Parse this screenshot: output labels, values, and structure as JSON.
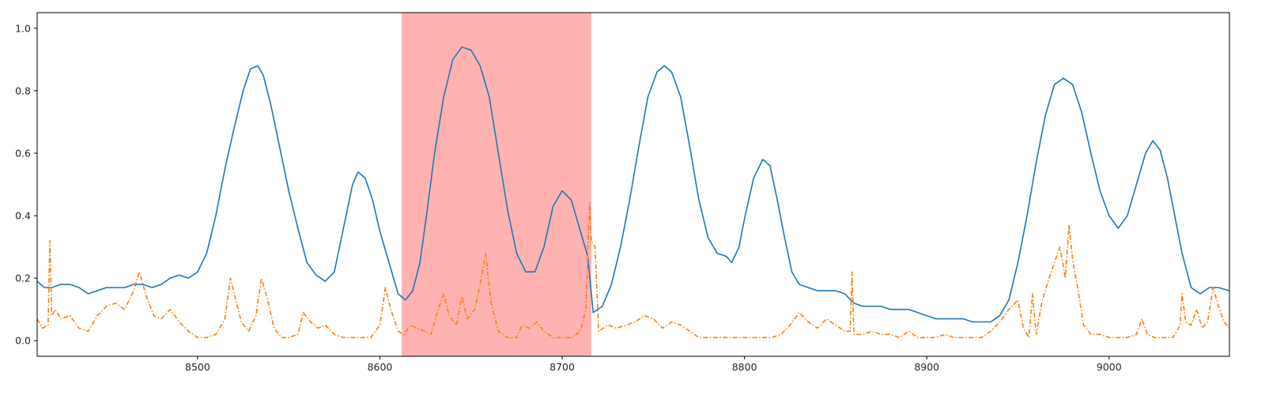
{
  "chart_data": {
    "type": "line",
    "title": "",
    "xlabel": "",
    "ylabel": "",
    "xlim": [
      8412,
      9066
    ],
    "ylim": [
      -0.05,
      1.05
    ],
    "grid": false,
    "legend": "none",
    "x_ticks": [
      8500,
      8600,
      8700,
      8800,
      8900,
      9000
    ],
    "y_ticks": [
      0.0,
      0.2,
      0.4,
      0.6,
      0.8,
      1.0
    ],
    "x_tick_labels": [
      "8500",
      "8600",
      "8700",
      "8800",
      "8900",
      "9000"
    ],
    "y_tick_labels": [
      "0.0",
      "0.2",
      "0.4",
      "0.6",
      "0.8",
      "1.0"
    ],
    "highlight_span": {
      "x0": 8612,
      "x1": 8716,
      "color": "#ff7f7f"
    },
    "series": [
      {
        "style": "solid",
        "color": "#1f77b4",
        "points": [
          [
            8412,
            0.19
          ],
          [
            8416,
            0.17
          ],
          [
            8420,
            0.17
          ],
          [
            8425,
            0.18
          ],
          [
            8430,
            0.18
          ],
          [
            8435,
            0.17
          ],
          [
            8440,
            0.15
          ],
          [
            8445,
            0.16
          ],
          [
            8450,
            0.17
          ],
          [
            8455,
            0.17
          ],
          [
            8460,
            0.17
          ],
          [
            8465,
            0.18
          ],
          [
            8470,
            0.18
          ],
          [
            8475,
            0.17
          ],
          [
            8480,
            0.18
          ],
          [
            8485,
            0.2
          ],
          [
            8490,
            0.21
          ],
          [
            8495,
            0.2
          ],
          [
            8500,
            0.22
          ],
          [
            8505,
            0.28
          ],
          [
            8510,
            0.4
          ],
          [
            8515,
            0.55
          ],
          [
            8520,
            0.68
          ],
          [
            8525,
            0.8
          ],
          [
            8529,
            0.87
          ],
          [
            8533,
            0.88
          ],
          [
            8536,
            0.85
          ],
          [
            8540,
            0.76
          ],
          [
            8545,
            0.62
          ],
          [
            8550,
            0.48
          ],
          [
            8555,
            0.36
          ],
          [
            8560,
            0.25
          ],
          [
            8565,
            0.21
          ],
          [
            8570,
            0.19
          ],
          [
            8575,
            0.22
          ],
          [
            8580,
            0.36
          ],
          [
            8585,
            0.5
          ],
          [
            8588,
            0.54
          ],
          [
            8592,
            0.52
          ],
          [
            8596,
            0.45
          ],
          [
            8600,
            0.35
          ],
          [
            8605,
            0.25
          ],
          [
            8610,
            0.15
          ],
          [
            8614,
            0.13
          ],
          [
            8618,
            0.16
          ],
          [
            8622,
            0.25
          ],
          [
            8626,
            0.42
          ],
          [
            8630,
            0.6
          ],
          [
            8635,
            0.78
          ],
          [
            8640,
            0.9
          ],
          [
            8645,
            0.94
          ],
          [
            8650,
            0.93
          ],
          [
            8655,
            0.88
          ],
          [
            8660,
            0.78
          ],
          [
            8665,
            0.6
          ],
          [
            8670,
            0.42
          ],
          [
            8675,
            0.28
          ],
          [
            8680,
            0.22
          ],
          [
            8685,
            0.22
          ],
          [
            8690,
            0.3
          ],
          [
            8695,
            0.43
          ],
          [
            8700,
            0.48
          ],
          [
            8705,
            0.45
          ],
          [
            8710,
            0.35
          ],
          [
            8714,
            0.27
          ],
          [
            8717,
            0.09
          ],
          [
            8722,
            0.11
          ],
          [
            8727,
            0.18
          ],
          [
            8732,
            0.3
          ],
          [
            8737,
            0.45
          ],
          [
            8742,
            0.62
          ],
          [
            8747,
            0.78
          ],
          [
            8752,
            0.86
          ],
          [
            8756,
            0.88
          ],
          [
            8760,
            0.86
          ],
          [
            8765,
            0.78
          ],
          [
            8770,
            0.62
          ],
          [
            8775,
            0.45
          ],
          [
            8780,
            0.33
          ],
          [
            8785,
            0.28
          ],
          [
            8790,
            0.27
          ],
          [
            8793,
            0.25
          ],
          [
            8797,
            0.3
          ],
          [
            8800,
            0.39
          ],
          [
            8805,
            0.52
          ],
          [
            8810,
            0.58
          ],
          [
            8814,
            0.56
          ],
          [
            8818,
            0.45
          ],
          [
            8822,
            0.33
          ],
          [
            8826,
            0.22
          ],
          [
            8830,
            0.18
          ],
          [
            8835,
            0.17
          ],
          [
            8840,
            0.16
          ],
          [
            8845,
            0.16
          ],
          [
            8850,
            0.16
          ],
          [
            8855,
            0.15
          ],
          [
            8860,
            0.12
          ],
          [
            8865,
            0.11
          ],
          [
            8870,
            0.11
          ],
          [
            8875,
            0.11
          ],
          [
            8880,
            0.1
          ],
          [
            8885,
            0.1
          ],
          [
            8890,
            0.1
          ],
          [
            8895,
            0.09
          ],
          [
            8900,
            0.08
          ],
          [
            8905,
            0.07
          ],
          [
            8910,
            0.07
          ],
          [
            8915,
            0.07
          ],
          [
            8920,
            0.07
          ],
          [
            8925,
            0.06
          ],
          [
            8930,
            0.06
          ],
          [
            8935,
            0.06
          ],
          [
            8940,
            0.08
          ],
          [
            8945,
            0.13
          ],
          [
            8950,
            0.25
          ],
          [
            8955,
            0.4
          ],
          [
            8960,
            0.57
          ],
          [
            8965,
            0.72
          ],
          [
            8970,
            0.82
          ],
          [
            8975,
            0.84
          ],
          [
            8980,
            0.82
          ],
          [
            8985,
            0.73
          ],
          [
            8990,
            0.6
          ],
          [
            8995,
            0.48
          ],
          [
            9000,
            0.4
          ],
          [
            9005,
            0.36
          ],
          [
            9010,
            0.4
          ],
          [
            9015,
            0.5
          ],
          [
            9020,
            0.6
          ],
          [
            9024,
            0.64
          ],
          [
            9028,
            0.61
          ],
          [
            9032,
            0.52
          ],
          [
            9036,
            0.4
          ],
          [
            9040,
            0.28
          ],
          [
            9045,
            0.17
          ],
          [
            9050,
            0.15
          ],
          [
            9055,
            0.17
          ],
          [
            9060,
            0.17
          ],
          [
            9066,
            0.16
          ]
        ]
      },
      {
        "style": "dashdot",
        "color": "#ff7f0e",
        "points": [
          [
            8412,
            0.07
          ],
          [
            8415,
            0.04
          ],
          [
            8418,
            0.05
          ],
          [
            8419,
            0.32
          ],
          [
            8420,
            0.08
          ],
          [
            8422,
            0.1
          ],
          [
            8425,
            0.07
          ],
          [
            8430,
            0.08
          ],
          [
            8435,
            0.04
          ],
          [
            8440,
            0.03
          ],
          [
            8445,
            0.08
          ],
          [
            8450,
            0.11
          ],
          [
            8455,
            0.12
          ],
          [
            8460,
            0.1
          ],
          [
            8465,
            0.16
          ],
          [
            8468,
            0.22
          ],
          [
            8472,
            0.14
          ],
          [
            8476,
            0.08
          ],
          [
            8480,
            0.07
          ],
          [
            8485,
            0.1
          ],
          [
            8490,
            0.06
          ],
          [
            8495,
            0.03
          ],
          [
            8500,
            0.01
          ],
          [
            8505,
            0.01
          ],
          [
            8510,
            0.02
          ],
          [
            8515,
            0.07
          ],
          [
            8518,
            0.2
          ],
          [
            8521,
            0.13
          ],
          [
            8524,
            0.06
          ],
          [
            8528,
            0.03
          ],
          [
            8532,
            0.08
          ],
          [
            8535,
            0.2
          ],
          [
            8538,
            0.14
          ],
          [
            8542,
            0.04
          ],
          [
            8546,
            0.01
          ],
          [
            8550,
            0.01
          ],
          [
            8555,
            0.02
          ],
          [
            8558,
            0.09
          ],
          [
            8562,
            0.06
          ],
          [
            8566,
            0.04
          ],
          [
            8570,
            0.05
          ],
          [
            8575,
            0.02
          ],
          [
            8580,
            0.01
          ],
          [
            8585,
            0.01
          ],
          [
            8590,
            0.01
          ],
          [
            8595,
            0.01
          ],
          [
            8600,
            0.05
          ],
          [
            8603,
            0.17
          ],
          [
            8606,
            0.1
          ],
          [
            8610,
            0.03
          ],
          [
            8613,
            0.02
          ],
          [
            8617,
            0.05
          ],
          [
            8620,
            0.04
          ],
          [
            8625,
            0.03
          ],
          [
            8628,
            0.02
          ],
          [
            8632,
            0.1
          ],
          [
            8635,
            0.15
          ],
          [
            8638,
            0.08
          ],
          [
            8642,
            0.05
          ],
          [
            8645,
            0.14
          ],
          [
            8648,
            0.07
          ],
          [
            8652,
            0.1
          ],
          [
            8655,
            0.18
          ],
          [
            8658,
            0.28
          ],
          [
            8661,
            0.12
          ],
          [
            8665,
            0.03
          ],
          [
            8670,
            0.01
          ],
          [
            8675,
            0.01
          ],
          [
            8678,
            0.05
          ],
          [
            8682,
            0.04
          ],
          [
            8686,
            0.06
          ],
          [
            8690,
            0.03
          ],
          [
            8695,
            0.01
          ],
          [
            8700,
            0.01
          ],
          [
            8705,
            0.01
          ],
          [
            8710,
            0.03
          ],
          [
            8713,
            0.1
          ],
          [
            8715,
            0.44
          ],
          [
            8716,
            0.32
          ],
          [
            8718,
            0.3
          ],
          [
            8720,
            0.03
          ],
          [
            8725,
            0.05
          ],
          [
            8730,
            0.04
          ],
          [
            8735,
            0.05
          ],
          [
            8740,
            0.06
          ],
          [
            8745,
            0.08
          ],
          [
            8750,
            0.07
          ],
          [
            8755,
            0.04
          ],
          [
            8760,
            0.06
          ],
          [
            8765,
            0.05
          ],
          [
            8770,
            0.03
          ],
          [
            8775,
            0.01
          ],
          [
            8780,
            0.01
          ],
          [
            8785,
            0.01
          ],
          [
            8790,
            0.01
          ],
          [
            8795,
            0.01
          ],
          [
            8800,
            0.01
          ],
          [
            8805,
            0.01
          ],
          [
            8810,
            0.01
          ],
          [
            8815,
            0.01
          ],
          [
            8820,
            0.02
          ],
          [
            8825,
            0.05
          ],
          [
            8830,
            0.09
          ],
          [
            8835,
            0.06
          ],
          [
            8840,
            0.04
          ],
          [
            8845,
            0.07
          ],
          [
            8850,
            0.05
          ],
          [
            8855,
            0.03
          ],
          [
            8858,
            0.03
          ],
          [
            8859,
            0.22
          ],
          [
            8860,
            0.02
          ],
          [
            8865,
            0.02
          ],
          [
            8870,
            0.03
          ],
          [
            8875,
            0.02
          ],
          [
            8880,
            0.02
          ],
          [
            8885,
            0.01
          ],
          [
            8890,
            0.03
          ],
          [
            8895,
            0.01
          ],
          [
            8900,
            0.01
          ],
          [
            8905,
            0.01
          ],
          [
            8910,
            0.02
          ],
          [
            8915,
            0.01
          ],
          [
            8920,
            0.01
          ],
          [
            8925,
            0.01
          ],
          [
            8930,
            0.01
          ],
          [
            8935,
            0.03
          ],
          [
            8940,
            0.06
          ],
          [
            8945,
            0.1
          ],
          [
            8950,
            0.13
          ],
          [
            8953,
            0.04
          ],
          [
            8956,
            0.01
          ],
          [
            8958,
            0.15
          ],
          [
            8960,
            0.02
          ],
          [
            8963,
            0.12
          ],
          [
            8966,
            0.18
          ],
          [
            8970,
            0.25
          ],
          [
            8973,
            0.3
          ],
          [
            8976,
            0.2
          ],
          [
            8978,
            0.37
          ],
          [
            8980,
            0.26
          ],
          [
            8983,
            0.16
          ],
          [
            8986,
            0.05
          ],
          [
            8990,
            0.02
          ],
          [
            8995,
            0.02
          ],
          [
            9000,
            0.01
          ],
          [
            9005,
            0.01
          ],
          [
            9010,
            0.01
          ],
          [
            9015,
            0.02
          ],
          [
            9018,
            0.07
          ],
          [
            9021,
            0.02
          ],
          [
            9025,
            0.01
          ],
          [
            9030,
            0.01
          ],
          [
            9035,
            0.01
          ],
          [
            9039,
            0.05
          ],
          [
            9040,
            0.15
          ],
          [
            9042,
            0.06
          ],
          [
            9045,
            0.05
          ],
          [
            9048,
            0.1
          ],
          [
            9051,
            0.04
          ],
          [
            9054,
            0.06
          ],
          [
            9057,
            0.17
          ],
          [
            9060,
            0.11
          ],
          [
            9063,
            0.06
          ],
          [
            9066,
            0.04
          ]
        ]
      }
    ]
  }
}
